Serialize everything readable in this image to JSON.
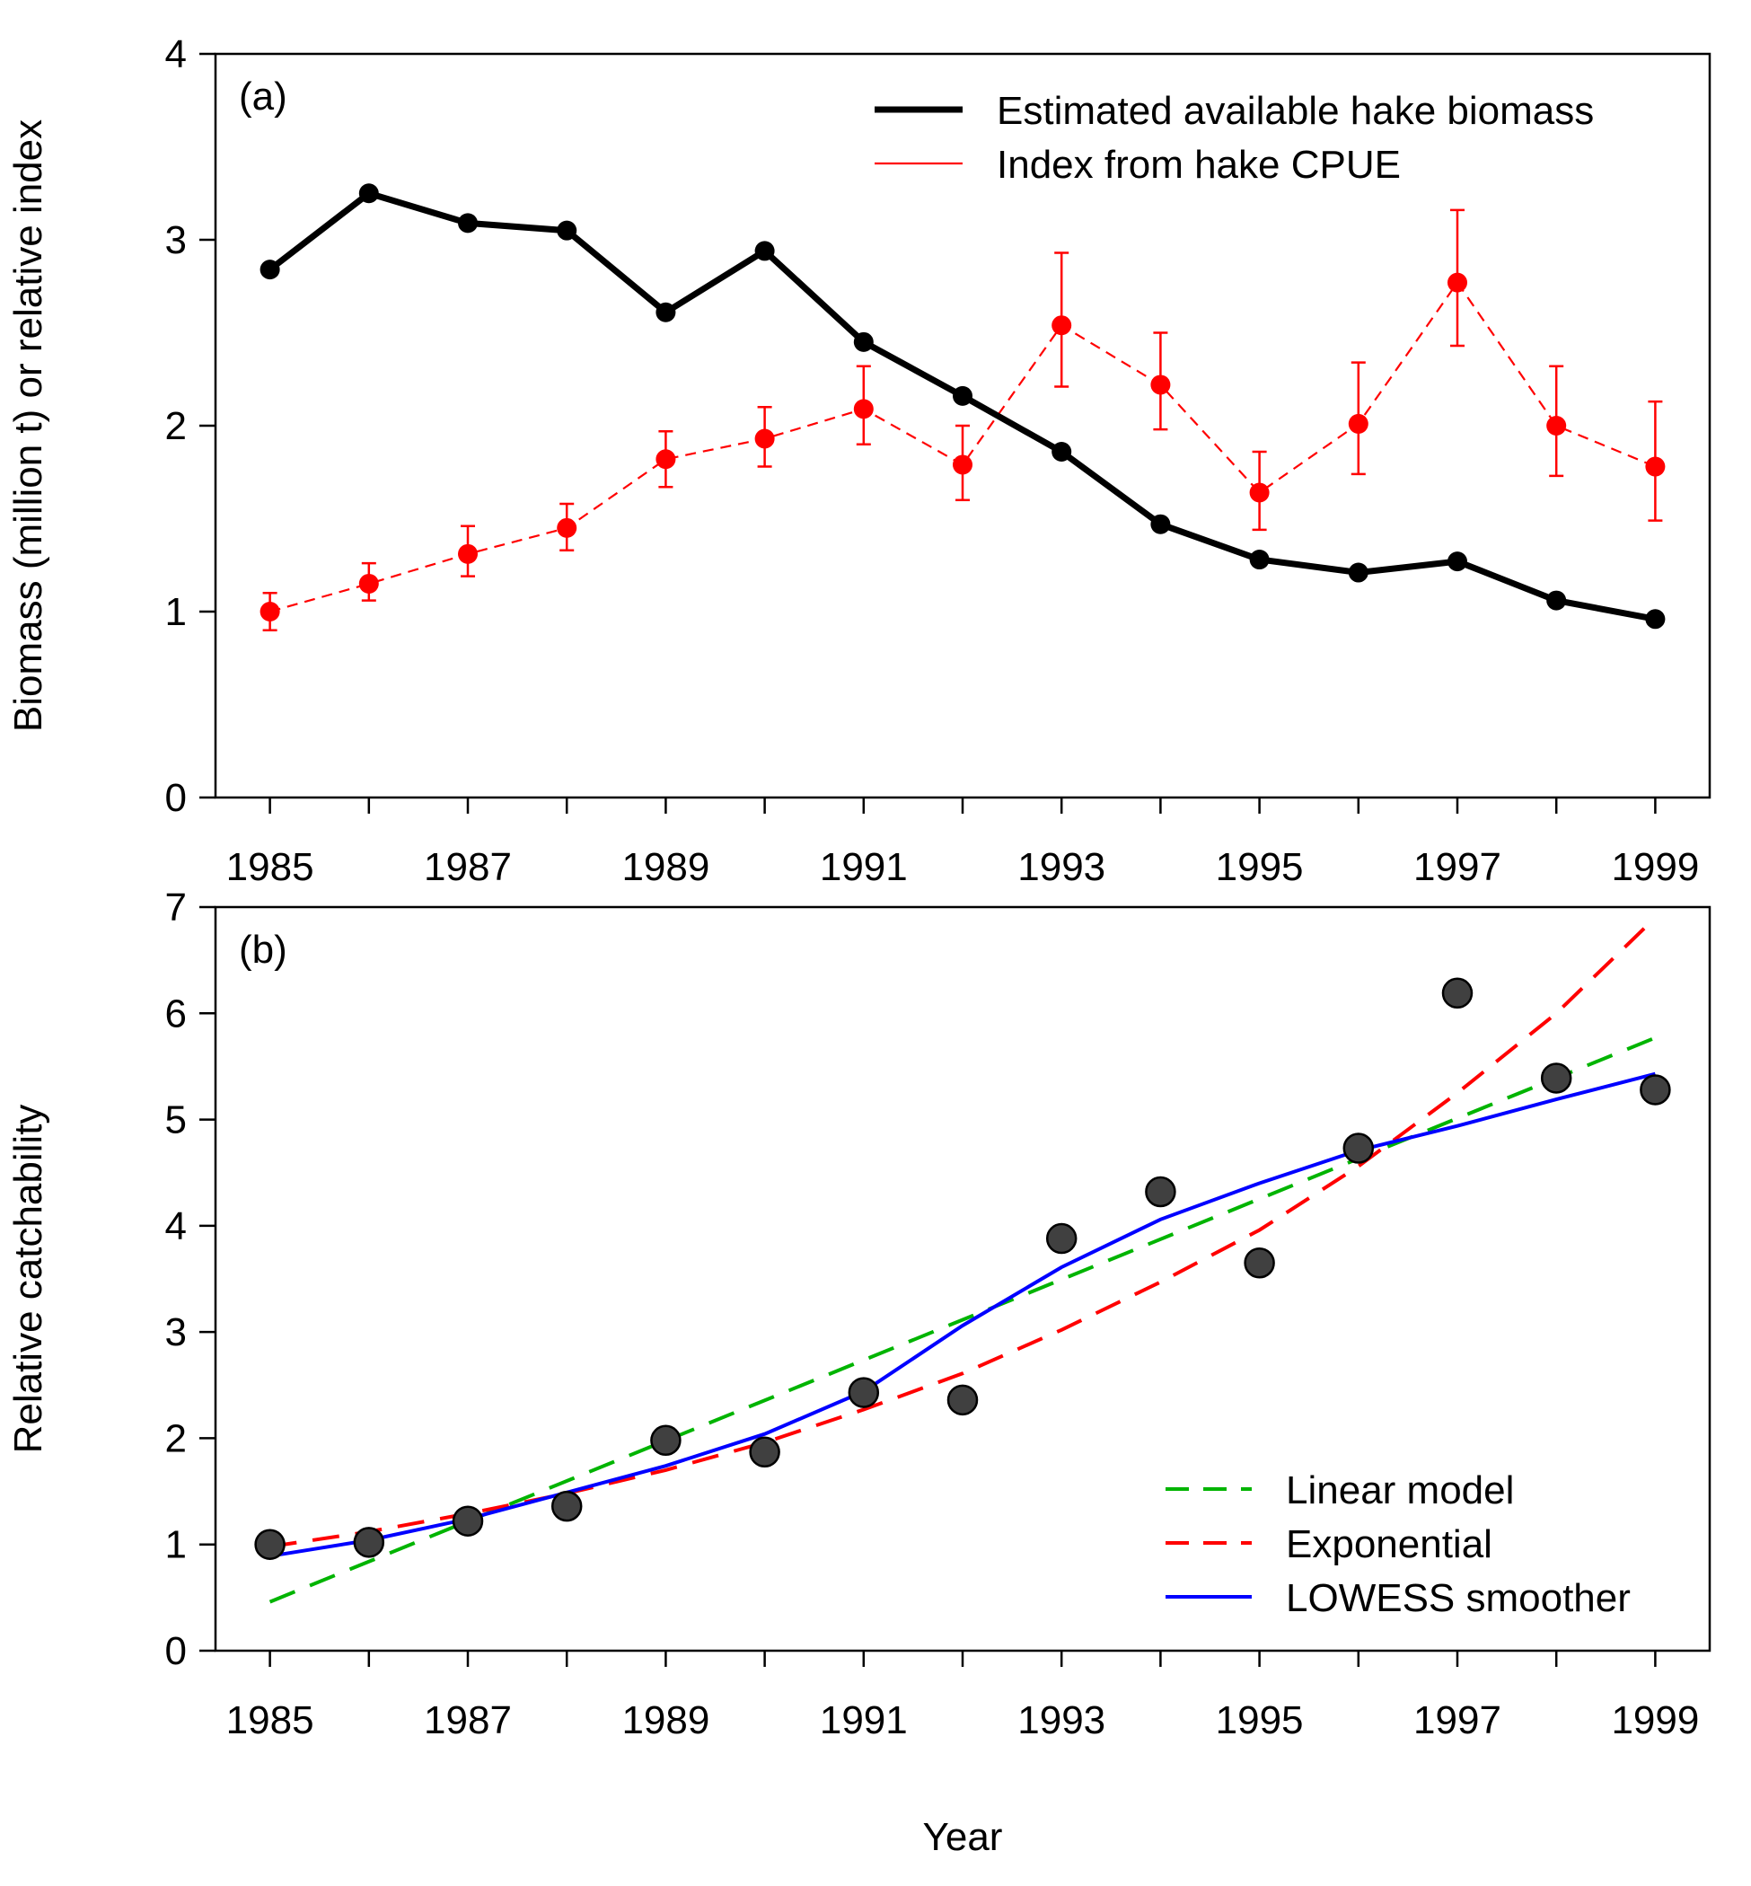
{
  "figure": {
    "xlabel": "Year"
  },
  "chart_data": [
    {
      "id": "a",
      "type": "line",
      "panel_label": "(a)",
      "ylabel": "Biomass (million t) or relative index",
      "xlabel": "",
      "xlim": [
        1984.45,
        1999.55
      ],
      "ylim": [
        0,
        4
      ],
      "yticks": [
        0,
        1,
        2,
        3,
        4
      ],
      "xticks": [
        1985,
        1986,
        1987,
        1988,
        1989,
        1990,
        1991,
        1992,
        1993,
        1994,
        1995,
        1996,
        1997,
        1998,
        1999
      ],
      "xtick_labels": [
        "1985",
        "1987",
        "1989",
        "1991",
        "1993",
        "1995",
        "1997",
        "1999"
      ],
      "legend_position": "top-right",
      "x": [
        1985,
        1986,
        1987,
        1988,
        1989,
        1990,
        1991,
        1992,
        1993,
        1994,
        1995,
        1996,
        1997,
        1998,
        1999
      ],
      "series": [
        {
          "name": "Estimated available hake biomass",
          "color": "#000000",
          "style": "solid-thick",
          "values": [
            2.84,
            3.25,
            3.09,
            3.05,
            2.61,
            2.94,
            2.45,
            2.16,
            1.86,
            1.47,
            1.28,
            1.21,
            1.27,
            1.06,
            0.96
          ]
        },
        {
          "name": "Index from hake CPUE",
          "color": "#ff0000",
          "style": "dashed-thin",
          "values": [
            1.0,
            1.15,
            1.31,
            1.45,
            1.82,
            1.93,
            2.09,
            1.79,
            2.54,
            2.22,
            1.64,
            2.01,
            2.77,
            2.0,
            1.78
          ],
          "error_lower": [
            0.9,
            1.06,
            1.19,
            1.33,
            1.67,
            1.78,
            1.9,
            1.6,
            2.21,
            1.98,
            1.44,
            1.74,
            2.43,
            1.73,
            1.49
          ],
          "error_upper": [
            1.1,
            1.26,
            1.46,
            1.58,
            1.97,
            2.1,
            2.32,
            2.0,
            2.93,
            2.5,
            1.86,
            2.34,
            3.16,
            2.32,
            2.13
          ]
        }
      ]
    },
    {
      "id": "b",
      "type": "scatter",
      "panel_label": "(b)",
      "ylabel": "Relative catchability",
      "xlabel": "Year",
      "xlim": [
        1984.45,
        1999.55
      ],
      "ylim": [
        0,
        7
      ],
      "yticks": [
        0,
        1,
        2,
        3,
        4,
        5,
        6,
        7
      ],
      "xticks": [
        1985,
        1986,
        1987,
        1988,
        1989,
        1990,
        1991,
        1992,
        1993,
        1994,
        1995,
        1996,
        1997,
        1998,
        1999
      ],
      "xtick_labels": [
        "1985",
        "1987",
        "1989",
        "1991",
        "1993",
        "1995",
        "1997",
        "1999"
      ],
      "legend_position": "bottom-right",
      "points": {
        "color": "#404040",
        "x": [
          1985,
          1986,
          1987,
          1988,
          1989,
          1990,
          1991,
          1992,
          1993,
          1994,
          1995,
          1996,
          1997,
          1998,
          1999
        ],
        "y": [
          1.0,
          1.02,
          1.22,
          1.36,
          1.98,
          1.87,
          2.43,
          2.36,
          3.88,
          4.32,
          3.65,
          4.73,
          6.19,
          5.39,
          5.28
        ]
      },
      "series": [
        {
          "name": "Linear model",
          "color": "#00b400",
          "style": "dashed",
          "x": [
            1985,
            1999
          ],
          "values": [
            0.46,
            5.77
          ]
        },
        {
          "name": "Exponential",
          "color": "#ff0000",
          "style": "dashed",
          "x": [
            1985,
            1986,
            1987,
            1988,
            1989,
            1990,
            1991,
            1992,
            1993,
            1994,
            1995,
            1996,
            1997,
            1998,
            1999
          ],
          "values": [
            0.98,
            1.12,
            1.29,
            1.48,
            1.7,
            1.96,
            2.27,
            2.61,
            3.02,
            3.47,
            3.96,
            4.56,
            5.25,
            6.0,
            6.9
          ]
        },
        {
          "name": "LOWESS smoother",
          "color": "#0000ff",
          "style": "solid",
          "x": [
            1985,
            1986,
            1987,
            1988,
            1989,
            1990,
            1991,
            1992,
            1993,
            1994,
            1995,
            1996,
            1997,
            1998,
            1999
          ],
          "values": [
            0.89,
            1.04,
            1.24,
            1.49,
            1.74,
            2.04,
            2.44,
            3.06,
            3.61,
            4.06,
            4.4,
            4.71,
            4.94,
            5.19,
            5.43
          ]
        }
      ]
    }
  ]
}
